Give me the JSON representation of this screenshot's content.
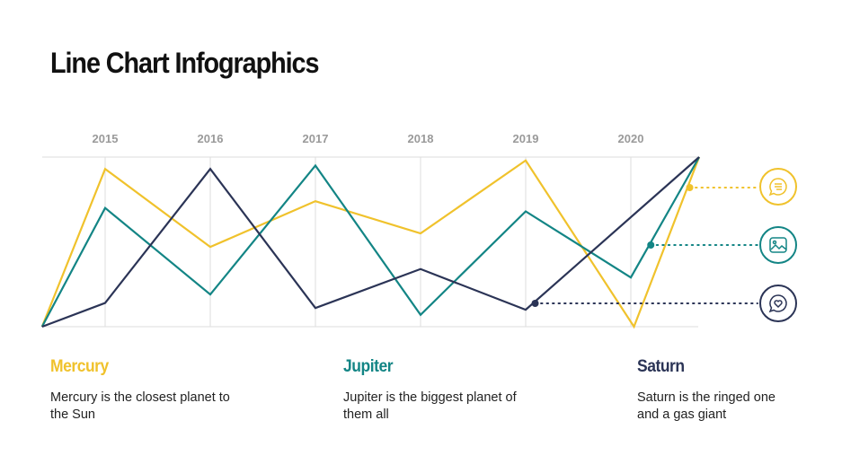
{
  "title": "Line Chart Infographics",
  "colors": {
    "mercury": "#f0c22c",
    "jupiter": "#138585",
    "saturn": "#2b3456",
    "grid": "#dddddd",
    "tick": "#9a9a9a"
  },
  "chart_data": {
    "type": "line",
    "categories": [
      "2015",
      "2016",
      "2017",
      "2018",
      "2019",
      "2020"
    ],
    "ylim": [
      0,
      100
    ],
    "grid": true,
    "y_axis_labels_shown": false,
    "series": [
      {
        "name": "Mercury",
        "color": "#f0c22c",
        "x": [
          2014.4,
          2015,
          2016,
          2017,
          2018,
          2019,
          2020.03,
          2020.65
        ],
        "values": [
          0,
          93,
          47,
          74,
          55,
          98,
          0,
          100
        ],
        "marker_x": 2020.56,
        "marker_value": 82
      },
      {
        "name": "Jupiter",
        "color": "#138585",
        "x": [
          2014.4,
          2015,
          2016,
          2017,
          2018,
          2019,
          2020,
          2020.65
        ],
        "values": [
          0,
          70,
          19,
          95,
          7,
          68,
          29,
          100
        ],
        "marker_x": 2020.19,
        "marker_value": 48
      },
      {
        "name": "Saturn",
        "color": "#2b3456",
        "x": [
          2014.4,
          2015,
          2016,
          2017,
          2018,
          2019,
          2020.65
        ],
        "values": [
          0,
          14,
          93,
          11,
          34,
          10,
          100
        ],
        "marker_x": 2019.09,
        "marker_value": 14
      }
    ]
  },
  "legend": [
    {
      "name": "Mercury",
      "text": "Mercury is the closest planet to the Sun",
      "icon": "chat-bubble-icon"
    },
    {
      "name": "Jupiter",
      "text": "Jupiter is the biggest planet of them all",
      "icon": "image-icon"
    },
    {
      "name": "Saturn",
      "text": "Saturn is the ringed one and a gas giant",
      "icon": "heart-bubble-icon"
    }
  ]
}
